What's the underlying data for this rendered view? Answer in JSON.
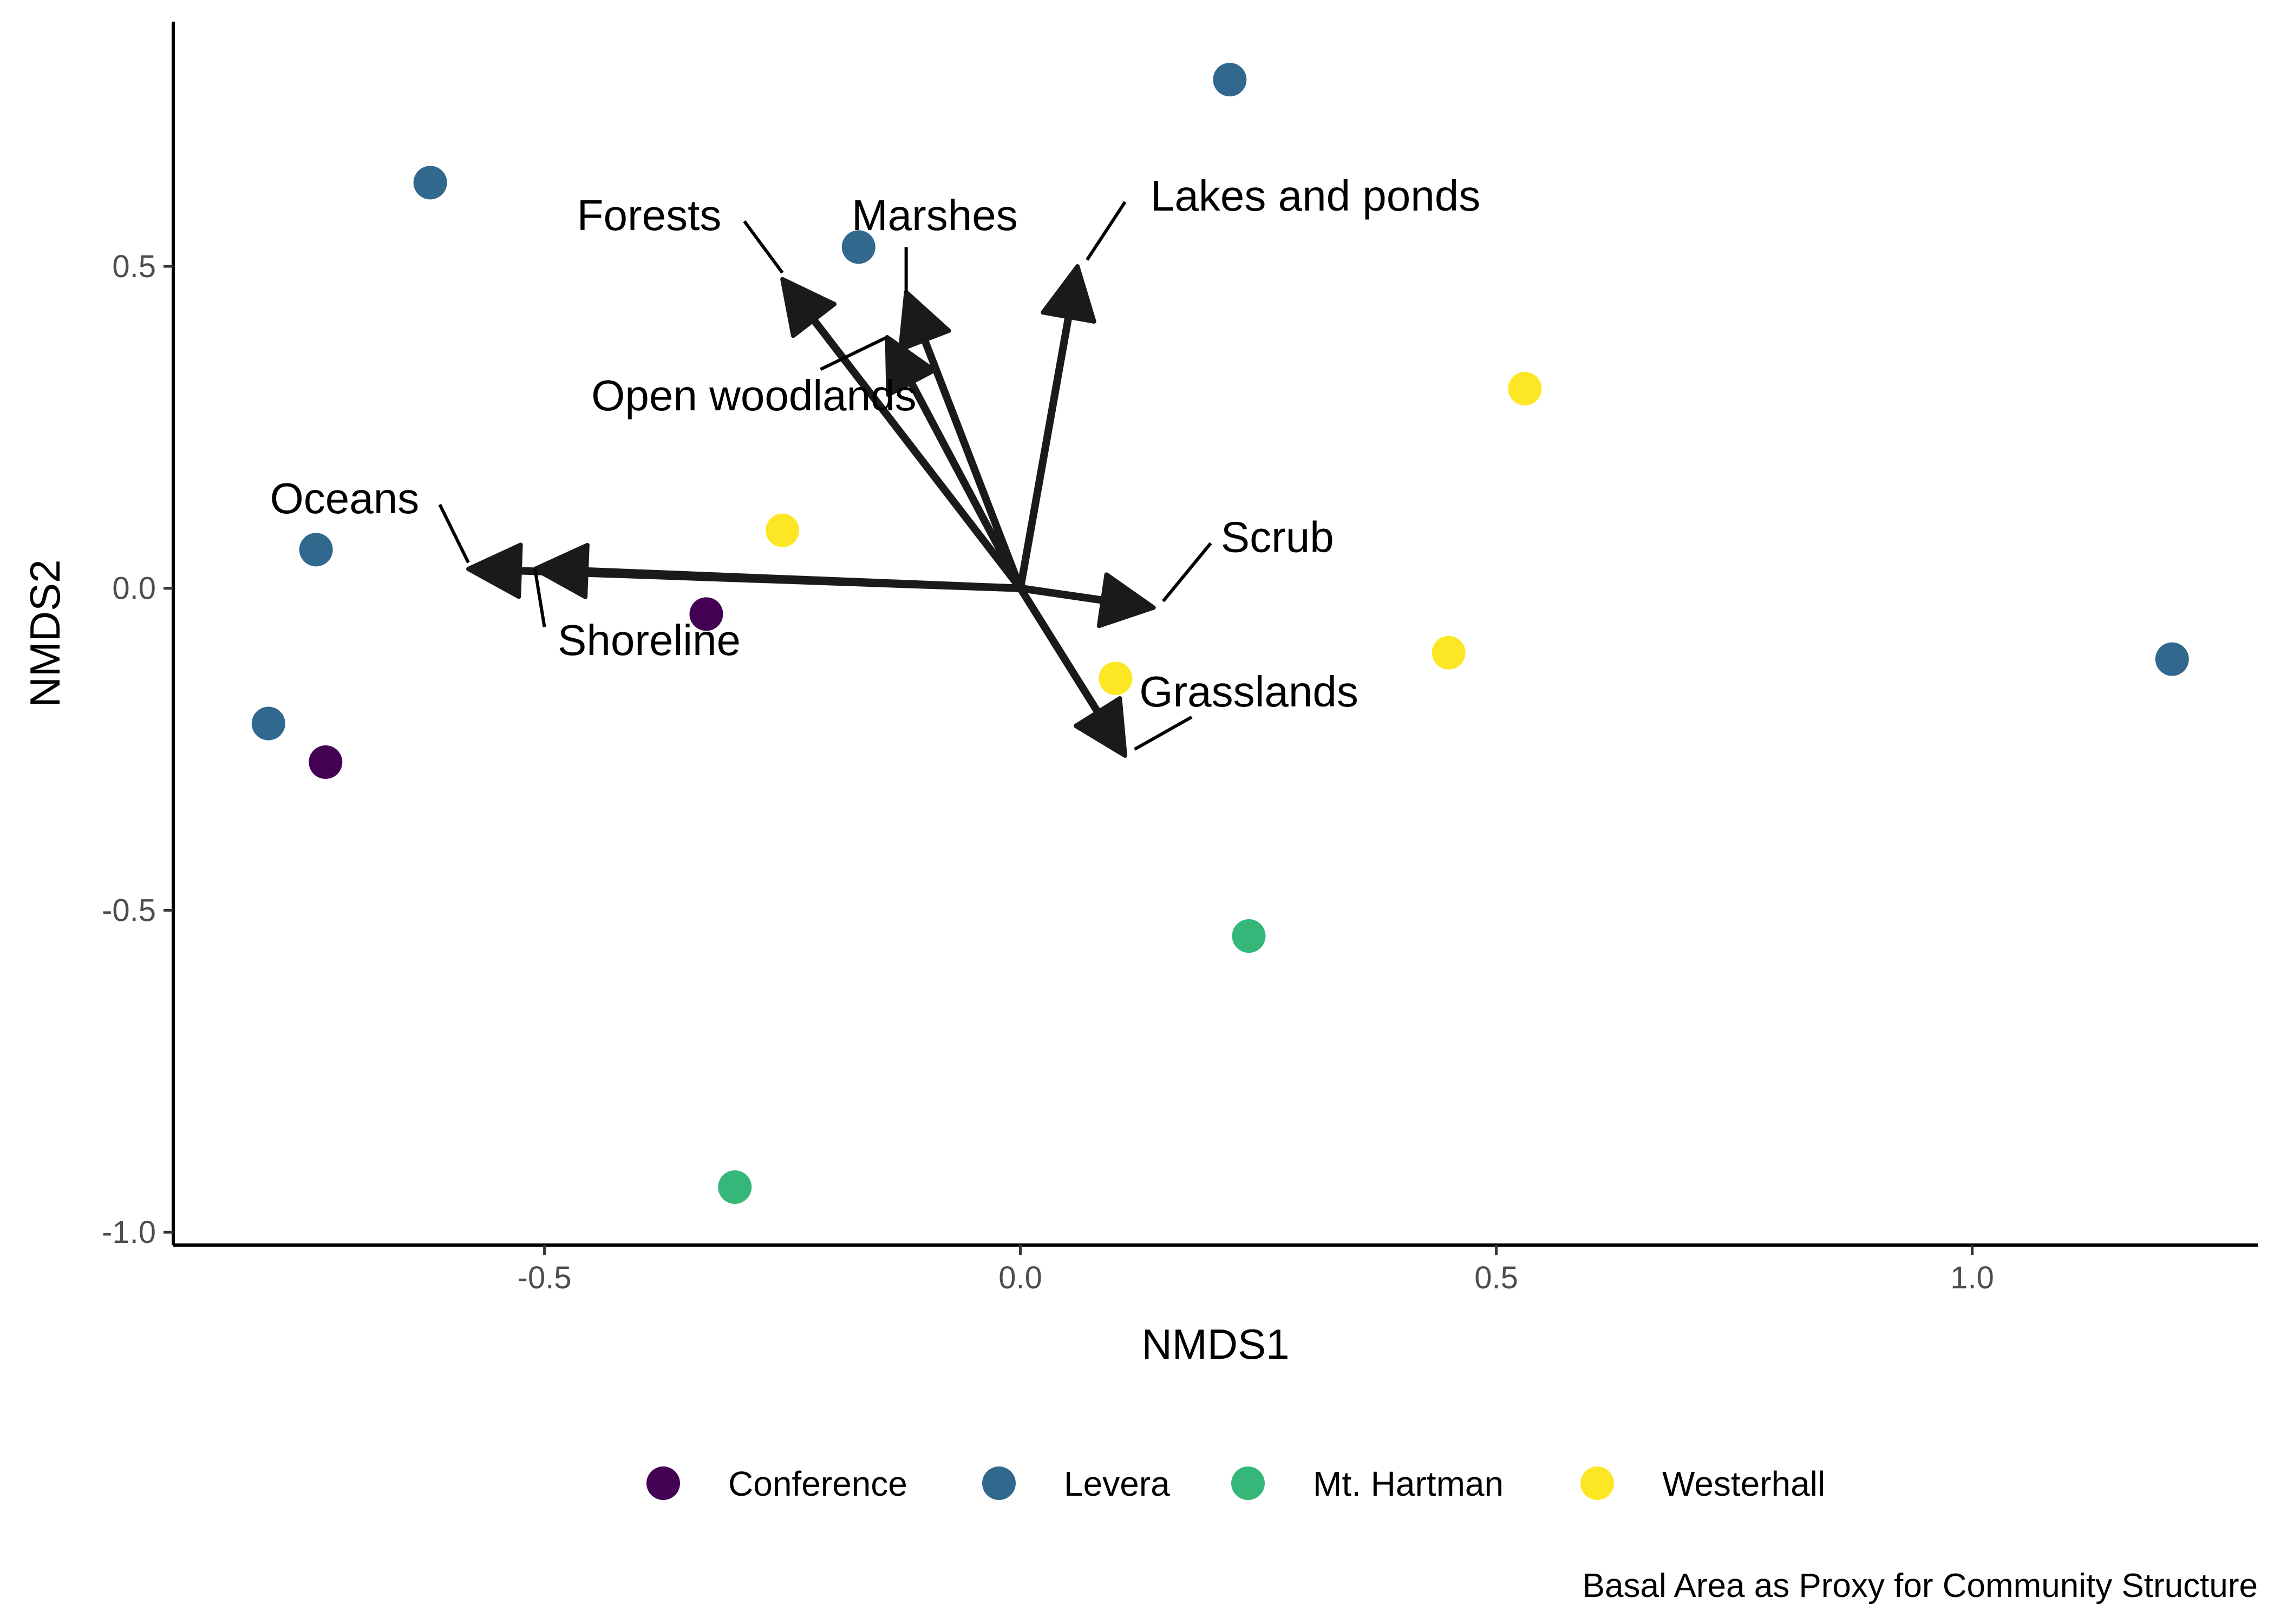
{
  "chart_data": {
    "type": "scatter",
    "title": "",
    "caption": "Basal Area as Proxy for Community Structure",
    "xlabel": "NMDS1",
    "ylabel": "NMDS2",
    "xlim": [
      -0.89,
      1.3
    ],
    "ylim": [
      -1.02,
      0.88
    ],
    "x_ticks": [
      -0.5,
      0.0,
      0.5,
      1.0
    ],
    "x_tick_labels": [
      "-0.5",
      "0.0",
      "0.5",
      "1.0"
    ],
    "y_ticks": [
      -1.0,
      -0.5,
      0.0,
      0.5
    ],
    "y_tick_labels": [
      "-1.0",
      "-0.5",
      "0.0",
      "0.5"
    ],
    "grid": false,
    "legend_position": "bottom",
    "series": [
      {
        "name": "Conference",
        "color": "#440154",
        "points": [
          [
            -0.33,
            -0.04
          ],
          [
            -0.73,
            -0.27
          ]
        ]
      },
      {
        "name": "Levera",
        "color": "#31688E",
        "points": [
          [
            0.22,
            0.79
          ],
          [
            -0.62,
            0.63
          ],
          [
            -0.17,
            0.53
          ],
          [
            -0.74,
            0.06
          ],
          [
            -0.79,
            -0.21
          ],
          [
            1.21,
            -0.11
          ]
        ]
      },
      {
        "name": "Mt. Hartman",
        "color": "#35B779",
        "points": [
          [
            0.24,
            -0.54
          ],
          [
            -0.3,
            -0.93
          ]
        ]
      },
      {
        "name": "Westerhall",
        "color": "#FDE725",
        "points": [
          [
            0.53,
            0.31
          ],
          [
            -0.25,
            0.09
          ],
          [
            0.45,
            -0.1
          ],
          [
            0.1,
            -0.14
          ]
        ]
      }
    ],
    "vectors": [
      {
        "label": "Forests",
        "x": -0.25,
        "y": 0.48,
        "label_x": -0.39,
        "label_y": 0.58,
        "leader_from": [
          -0.29,
          0.57
        ],
        "leader_to": [
          -0.25,
          0.49
        ]
      },
      {
        "label": "Marshes",
        "x": -0.12,
        "y": 0.46,
        "label_x": -0.09,
        "label_y": 0.58,
        "leader_from": [
          -0.12,
          0.53
        ],
        "leader_to": [
          -0.12,
          0.46
        ]
      },
      {
        "label": "Open woodlands",
        "x": -0.14,
        "y": 0.39,
        "label_x": -0.28,
        "label_y": 0.3,
        "leader_from": [
          -0.21,
          0.34
        ],
        "leader_to": [
          -0.14,
          0.39
        ]
      },
      {
        "label": "Lakes and ponds",
        "x": 0.06,
        "y": 0.5,
        "label_x": 0.31,
        "label_y": 0.61,
        "leader_from": [
          0.11,
          0.6
        ],
        "leader_to": [
          0.07,
          0.51
        ]
      },
      {
        "label": "Oceans",
        "x": -0.58,
        "y": 0.03,
        "label_x": -0.71,
        "label_y": 0.14,
        "leader_from": [
          -0.61,
          0.13
        ],
        "leader_to": [
          -0.58,
          0.04
        ]
      },
      {
        "label": "Shoreline",
        "x": -0.51,
        "y": 0.03,
        "label_x": -0.39,
        "label_y": -0.08,
        "leader_from": [
          -0.5,
          -0.06
        ],
        "leader_to": [
          -0.51,
          0.03
        ]
      },
      {
        "label": "Scrub",
        "x": 0.14,
        "y": -0.03,
        "label_x": 0.27,
        "label_y": 0.08,
        "leader_from": [
          0.2,
          0.07
        ],
        "leader_to": [
          0.15,
          -0.02
        ]
      },
      {
        "label": "Grasslands",
        "x": 0.11,
        "y": -0.26,
        "label_x": 0.24,
        "label_y": -0.16,
        "leader_from": [
          0.18,
          -0.2
        ],
        "leader_to": [
          0.12,
          -0.25
        ]
      }
    ]
  }
}
